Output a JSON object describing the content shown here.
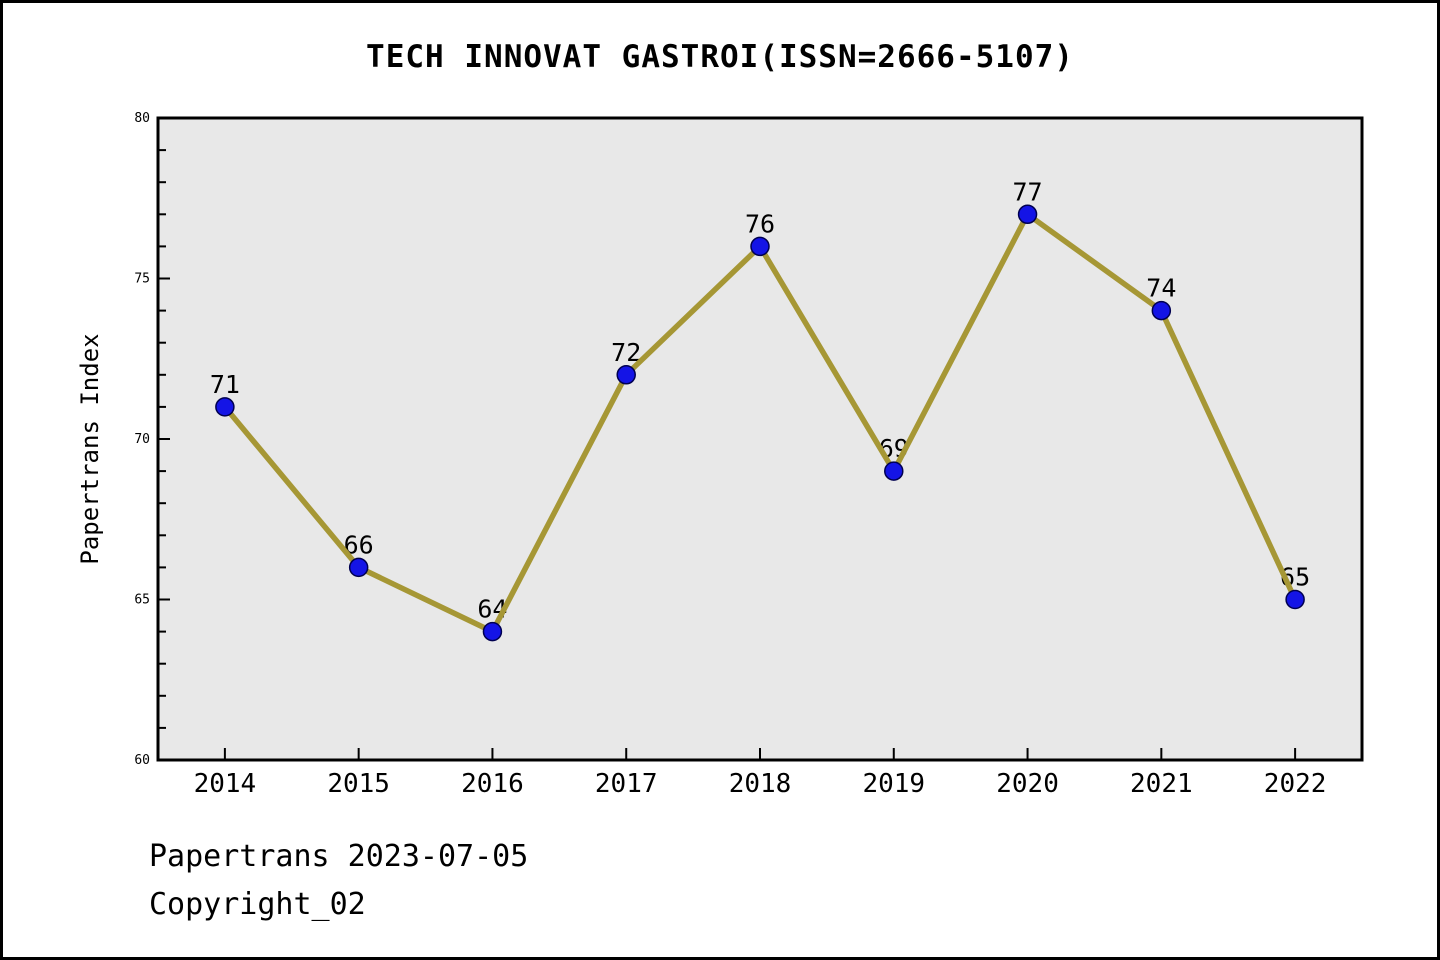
{
  "chart_data": {
    "type": "line",
    "title": "TECH INNOVAT GASTROI(ISSN=2666-5107)",
    "categories": [
      "2014",
      "2015",
      "2016",
      "2017",
      "2018",
      "2019",
      "2020",
      "2021",
      "2022"
    ],
    "values": [
      71,
      66,
      64,
      72,
      76,
      69,
      77,
      74,
      65
    ],
    "point_labels": [
      "71",
      "66",
      "64",
      "72",
      "76",
      "69",
      "77",
      "74",
      "65"
    ],
    "xlabel": "",
    "ylabel": "Papertrans Index",
    "ylim": [
      60,
      80
    ],
    "y_major_tick_step": 5,
    "y_minor_tick_step": 1,
    "grid": false,
    "legend": null,
    "colors": {
      "line": "#a69735",
      "marker_fill": "#1414e6",
      "marker_edge": "#000050",
      "plot_bg": "#e8e8e8",
      "axis": "#000000",
      "text": "#000000",
      "figure_bg": "#ffffff"
    }
  },
  "footer": {
    "line1": "Papertrans 2023-07-05",
    "line2": "Copyright_02"
  }
}
